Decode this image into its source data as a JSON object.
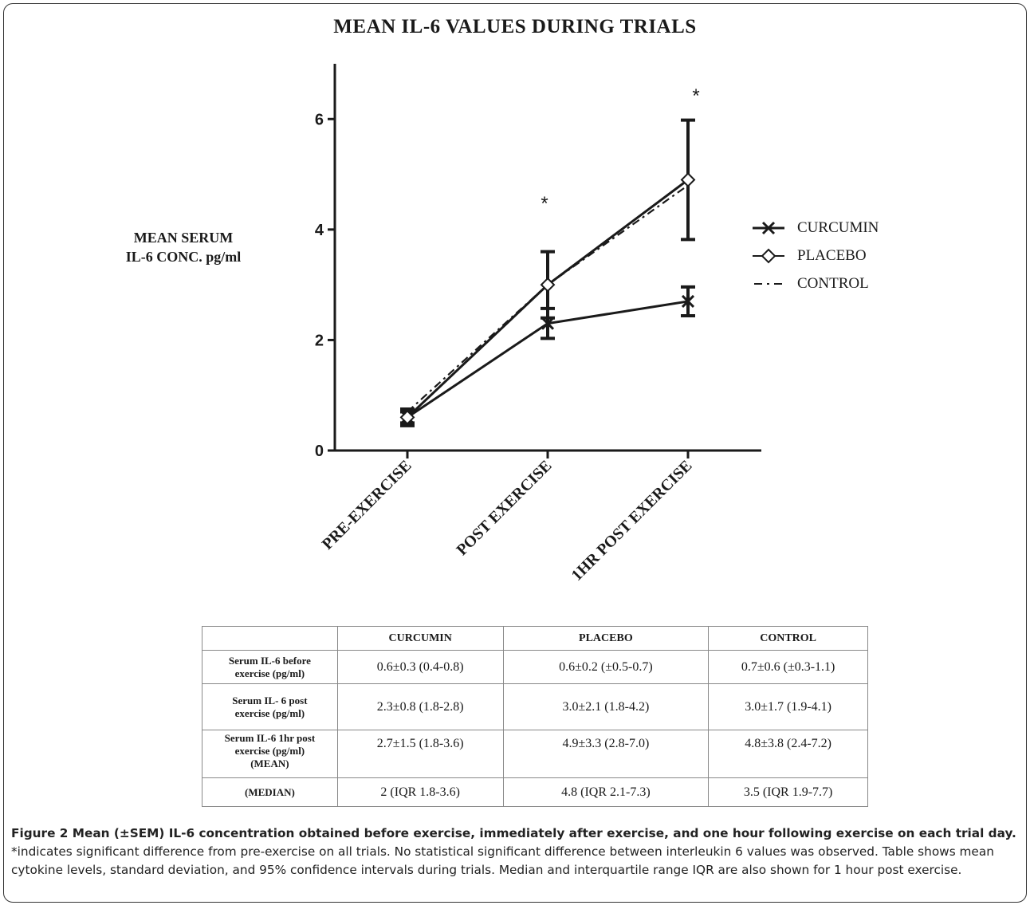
{
  "chart_data": {
    "type": "line",
    "title": "MEAN IL-6 VALUES DURING TRIALS",
    "ylabel_line1": "MEAN SERUM",
    "ylabel_line2": "IL-6 CONC. pg/ml",
    "categories": [
      "PRE-EXERCISE",
      "POST EXERCISE",
      "1HR POST EXERCISE"
    ],
    "ylim": [
      0,
      7
    ],
    "yticks": [
      0,
      2,
      4,
      6
    ],
    "series": [
      {
        "name": "CURCUMIN",
        "marker": "x",
        "line": "solid",
        "values": [
          0.6,
          2.3,
          2.7
        ],
        "sem": [
          0.15,
          0.27,
          0.26
        ]
      },
      {
        "name": "PLACEBO",
        "marker": "diamond",
        "line": "solid",
        "values": [
          0.6,
          3.0,
          4.9
        ],
        "sem": [
          0.1,
          0.6,
          1.08
        ]
      },
      {
        "name": "CONTROL",
        "marker": "none",
        "line": "dashdot",
        "values": [
          0.7,
          3.0,
          4.8
        ],
        "sem": [
          0.1,
          0.6,
          1.08
        ]
      }
    ],
    "annotations": [
      {
        "category": "POST EXERCISE",
        "y": 4.5,
        "text": "*"
      },
      {
        "category": "1HR POST EXERCISE",
        "y": 6.45,
        "text": "*"
      }
    ],
    "legend_position": "right"
  },
  "table": {
    "headers": [
      "",
      "CURCUMIN",
      "PLACEBO",
      "CONTROL"
    ],
    "rows": [
      {
        "label_lines": [
          "Serum IL-6 before",
          "exercise (pg/ml)"
        ],
        "cells": [
          "0.6±0.3 (0.4-0.8)",
          "0.6±0.2 (±0.5-0.7)",
          "0.7±0.6 (±0.3-1.1)"
        ]
      },
      {
        "label_lines": [
          "Serum IL- 6 post",
          "exercise (pg/ml)"
        ],
        "cells": [
          "2.3±0.8 (1.8-2.8)",
          "3.0±2.1 (1.8-4.2)",
          "3.0±1.7 (1.9-4.1)"
        ]
      },
      {
        "label_lines": [
          "Serum IL-6 1hr post",
          "exercise (pg/ml)",
          "(MEAN)"
        ],
        "cells": [
          "2.7±1.5 (1.8-3.6)",
          "4.9±3.3 (2.8-7.0)",
          "4.8±3.8 (2.4-7.2)"
        ]
      },
      {
        "label_lines": [
          "(MEDIAN)"
        ],
        "cells": [
          "2 (IQR 1.8-3.6)",
          "4.8 (IQR 2.1-7.3)",
          "3.5 (IQR 1.9-7.7)"
        ]
      }
    ]
  },
  "caption": {
    "bold": "Figure 2 Mean (±SEM) IL-6 concentration obtained before exercise, immediately after exercise, and one hour following exercise on each trial day.",
    "text": " *indicates significant difference from pre-exercise on all trials. No statistical significant difference between interleukin 6 values was observed. Table shows mean cytokine levels, standard deviation, and 95% confidence intervals during trials. Median and interquartile range IQR are also shown for 1 hour post exercise."
  }
}
